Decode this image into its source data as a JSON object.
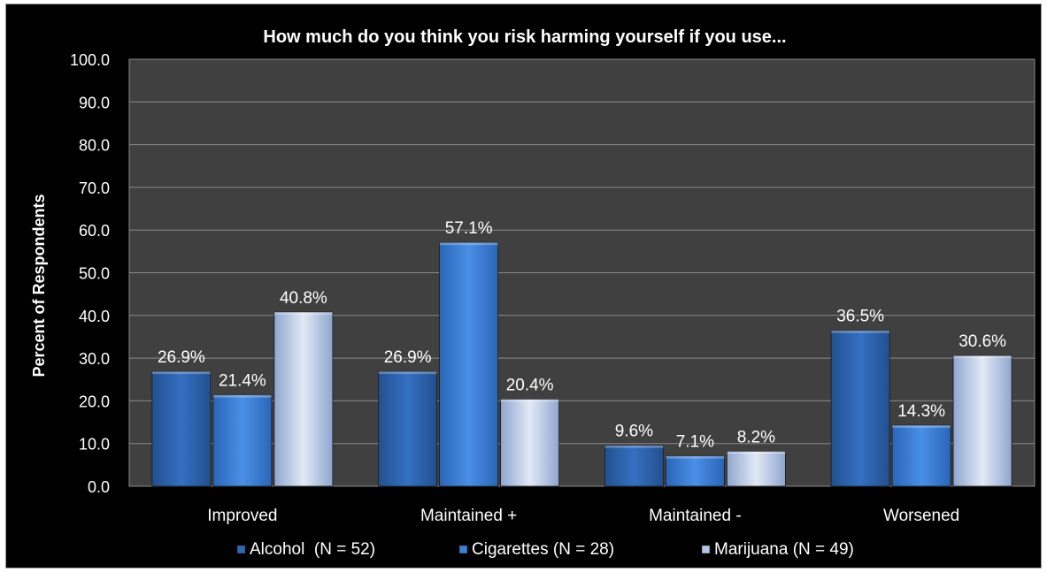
{
  "chart_data": {
    "type": "bar",
    "title": "How much do you think you risk harming yourself if you use...",
    "xlabel": "",
    "ylabel": "Percent of Respondents",
    "ylim": [
      0,
      100
    ],
    "yticks": [
      "0.0",
      "10.0",
      "20.0",
      "30.0",
      "40.0",
      "50.0",
      "60.0",
      "70.0",
      "80.0",
      "90.0",
      "100.0"
    ],
    "grid": true,
    "legend_position": "bottom",
    "categories": [
      "Improved",
      "Maintained +",
      "Maintained -",
      "Worsened"
    ],
    "series": [
      {
        "name": "Alcohol  (N = 52)",
        "values": [
          26.9,
          26.9,
          9.6,
          36.5
        ],
        "labels": [
          "26.9%",
          "26.9%",
          "9.6%",
          "36.5%"
        ],
        "color": "#2f67b5"
      },
      {
        "name": "Cigarettes (N = 28)",
        "values": [
          21.4,
          57.1,
          7.1,
          14.3
        ],
        "labels": [
          "21.4%",
          "57.1%",
          "7.1%",
          "14.3%"
        ],
        "color": "#3b7fd6"
      },
      {
        "name": "Marijuana (N = 49)",
        "values": [
          40.8,
          20.4,
          8.2,
          30.6
        ],
        "labels": [
          "40.8%",
          "20.4%",
          "8.2%",
          "30.6%"
        ],
        "color": "#b4c6e6"
      }
    ]
  }
}
